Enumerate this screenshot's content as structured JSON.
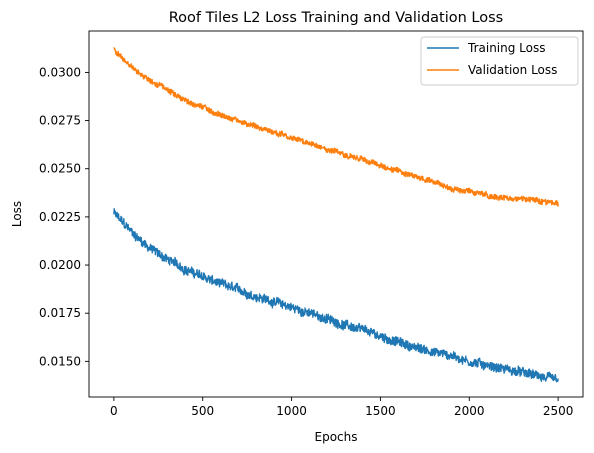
{
  "chart_data": {
    "type": "line",
    "title": "Roof Tiles L2 Loss Training and Validation Loss",
    "xlabel": "Epochs",
    "ylabel": "Loss",
    "xlim": [
      -140,
      2640
    ],
    "ylim": [
      0.01315,
      0.03215
    ],
    "x_ticks": [
      0,
      500,
      1000,
      1500,
      2000,
      2500
    ],
    "x_tick_labels": [
      "0",
      "500",
      "1000",
      "1500",
      "2000",
      "2500"
    ],
    "y_ticks": [
      0.015,
      0.0175,
      0.02,
      0.0225,
      0.025,
      0.0275,
      0.03
    ],
    "y_tick_labels": [
      "0.0150",
      "0.0175",
      "0.0200",
      "0.0225",
      "0.0250",
      "0.0275",
      "0.0300"
    ],
    "grid": false,
    "legend_position": "top-right",
    "series": [
      {
        "name": "Training Loss",
        "color": "#1f77b4",
        "noise": 0.00022,
        "x": [
          0,
          50,
          100,
          150,
          200,
          300,
          400,
          500,
          600,
          700,
          800,
          900,
          1000,
          1100,
          1200,
          1300,
          1400,
          1500,
          1600,
          1700,
          1800,
          1900,
          2000,
          2100,
          2200,
          2300,
          2400,
          2500
        ],
        "y": [
          0.0227,
          0.0222,
          0.0217,
          0.0213,
          0.0209,
          0.0203,
          0.0198,
          0.0194,
          0.019,
          0.0187,
          0.0184,
          0.0181,
          0.0178,
          0.0175,
          0.0172,
          0.0169,
          0.0166,
          0.0163,
          0.016,
          0.0157,
          0.0155,
          0.0153,
          0.015,
          0.0148,
          0.0146,
          0.0144,
          0.0142,
          0.014
        ]
      },
      {
        "name": "Validation Loss",
        "color": "#ff7f0e",
        "noise": 0.00013,
        "x": [
          0,
          50,
          100,
          150,
          200,
          300,
          400,
          500,
          600,
          700,
          800,
          900,
          1000,
          1100,
          1200,
          1300,
          1400,
          1500,
          1600,
          1700,
          1800,
          1900,
          2000,
          2100,
          2200,
          2300,
          2400,
          2500
        ],
        "y": [
          0.0312,
          0.0307,
          0.0303,
          0.0299,
          0.0296,
          0.0291,
          0.0286,
          0.0282,
          0.0278,
          0.0275,
          0.0272,
          0.0269,
          0.0266,
          0.0263,
          0.026,
          0.0258,
          0.0255,
          0.0252,
          0.0249,
          0.0246,
          0.0243,
          0.024,
          0.0238,
          0.0236,
          0.0235,
          0.0234,
          0.0233,
          0.0232
        ]
      }
    ]
  }
}
